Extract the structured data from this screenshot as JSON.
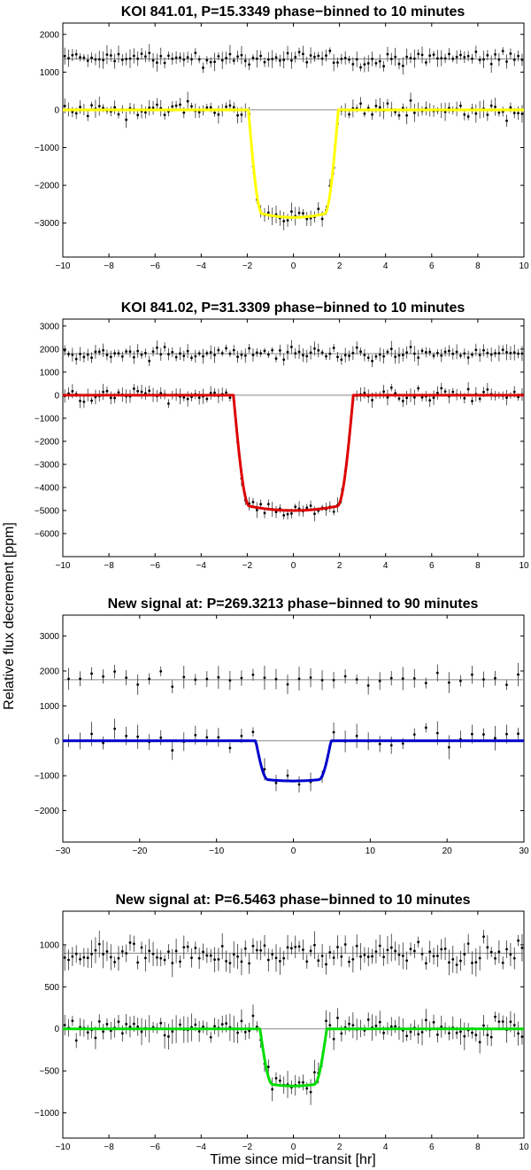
{
  "figure": {
    "ylabel": "Relative flux decrement [ppm]",
    "xlabel": "Time since mid−transit [hr]"
  },
  "chart_data": [
    {
      "type": "scatter",
      "title": "KOI 841.01, P=15.3349 phase−binned to 10 minutes",
      "xlim": [
        -10,
        10
      ],
      "ylim": [
        -3900,
        2300
      ],
      "xticks": [
        -10,
        -8,
        -6,
        -4,
        -2,
        0,
        2,
        4,
        6,
        8,
        10
      ],
      "yticks": [
        -3000,
        -2000,
        -1000,
        0,
        1000,
        2000
      ],
      "model_color": "#ffff00",
      "model": {
        "depth": 2850,
        "t_ingress_start": 1.95,
        "t_flat": 1.35
      },
      "offset_series_level": 1350,
      "binning_hr": 0.1667,
      "scatter_ppm": 180,
      "grid": false
    },
    {
      "type": "scatter",
      "title": "KOI 841.02, P=31.3309 phase−binned to 10 minutes",
      "xlim": [
        -10,
        10
      ],
      "ylim": [
        -7000,
        3300
      ],
      "xticks": [
        -10,
        -8,
        -6,
        -4,
        -2,
        0,
        2,
        4,
        6,
        8,
        10
      ],
      "yticks": [
        -6000,
        -5000,
        -4000,
        -3000,
        -2000,
        -1000,
        0,
        1000,
        2000,
        3000
      ],
      "model_color": "#dd0000",
      "model": {
        "depth": 5000,
        "t_ingress_start": 2.6,
        "t_flat": 1.9
      },
      "offset_series_level": 1800,
      "binning_hr": 0.1667,
      "scatter_ppm": 250,
      "grid": false
    },
    {
      "type": "scatter",
      "title": "New signal at: P=269.3213 phase−binned to 90 minutes",
      "xlim": [
        -30,
        30
      ],
      "ylim": [
        -2900,
        3600
      ],
      "xticks": [
        -30,
        -20,
        -10,
        0,
        10,
        20,
        30
      ],
      "yticks": [
        -2000,
        -1000,
        0,
        1000,
        2000,
        3000
      ],
      "model_color": "#0000cc",
      "model": {
        "depth": 1150,
        "t_ingress_start": 4.9,
        "t_flat": 3.3
      },
      "offset_series_level": 1750,
      "binning_hr": 1.5,
      "scatter_ppm": 250,
      "grid": false
    },
    {
      "type": "scatter",
      "title": "New signal at: P=6.5463 phase−binned to 10 minutes",
      "xlim": [
        -10,
        10
      ],
      "ylim": [
        -1300,
        1400
      ],
      "xticks": [
        -10,
        -8,
        -6,
        -4,
        -2,
        0,
        2,
        4,
        6,
        8,
        10
      ],
      "yticks": [
        -1000,
        -500,
        0,
        500,
        1000
      ],
      "model_color": "#00dd00",
      "model": {
        "depth": 680,
        "t_ingress_start": 1.45,
        "t_flat": 0.9
      },
      "offset_series_level": 900,
      "binning_hr": 0.1667,
      "scatter_ppm": 120,
      "grid": false
    }
  ]
}
